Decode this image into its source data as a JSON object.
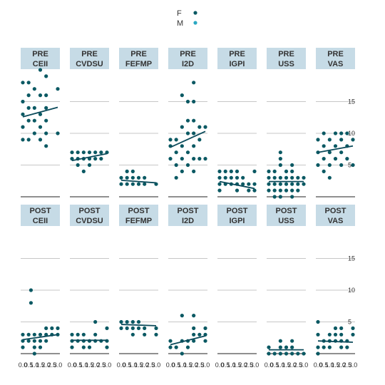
{
  "legend": {
    "entries": [
      {
        "label": "F",
        "color": "#0b5963"
      },
      {
        "label": "M",
        "color": "#2ba8c2"
      }
    ]
  },
  "chart_data": {
    "type": "scatter",
    "facet_rows": [
      "PRE",
      "POST"
    ],
    "facet_cols": [
      "CEII",
      "CVDSU",
      "FEFMP",
      "I2D",
      "IGPI",
      "USS",
      "VAS"
    ],
    "y_ticks": [
      5,
      10,
      15
    ],
    "y_ticks_pre": [
      5,
      10,
      15
    ],
    "y_ticks_post": [
      5,
      10,
      15
    ],
    "x_ticks": [
      "0.0",
      "0.5",
      "1.0",
      "1.5",
      "2.0",
      "2.5",
      "3.0"
    ],
    "xlim": [
      0,
      3
    ],
    "ylim_pre": [
      0,
      20
    ],
    "ylim_post": [
      0,
      20
    ],
    "grid": true,
    "point_color": "#0b5963",
    "line_color": "#0b4a5a",
    "strip_color": "#c6dbe6",
    "panels": [
      {
        "row": "PRE",
        "col": "CEII",
        "label_top": "PRE",
        "label_bottom": "CEII",
        "points": [
          [
            0,
            9
          ],
          [
            0,
            11
          ],
          [
            0,
            13
          ],
          [
            0,
            15
          ],
          [
            0,
            18
          ],
          [
            0.5,
            9
          ],
          [
            0.5,
            12
          ],
          [
            0.5,
            14
          ],
          [
            0.5,
            16
          ],
          [
            0.5,
            18
          ],
          [
            1,
            10
          ],
          [
            1,
            12
          ],
          [
            1,
            14
          ],
          [
            1,
            17
          ],
          [
            1.5,
            9
          ],
          [
            1.5,
            11
          ],
          [
            1.5,
            13
          ],
          [
            1.5,
            16
          ],
          [
            1.5,
            20
          ],
          [
            2,
            8
          ],
          [
            2,
            10
          ],
          [
            2,
            12
          ],
          [
            2,
            14
          ],
          [
            2,
            16
          ],
          [
            2,
            19
          ],
          [
            3,
            10
          ],
          [
            3,
            17
          ]
        ],
        "fit": [
          [
            0,
            12.6
          ],
          [
            3,
            14.1
          ]
        ]
      },
      {
        "row": "PRE",
        "col": "CVDSU",
        "label_top": "PRE",
        "label_bottom": "CVDSU",
        "points": [
          [
            0,
            6
          ],
          [
            0,
            7
          ],
          [
            0.5,
            5
          ],
          [
            0.5,
            6
          ],
          [
            0.5,
            7
          ],
          [
            1,
            4
          ],
          [
            1,
            6
          ],
          [
            1,
            7
          ],
          [
            1.5,
            5
          ],
          [
            1.5,
            6
          ],
          [
            1.5,
            7
          ],
          [
            2,
            6
          ],
          [
            2,
            7
          ],
          [
            2.5,
            6
          ],
          [
            2.5,
            7
          ],
          [
            3,
            7
          ]
        ],
        "fit": [
          [
            0,
            5.7
          ],
          [
            3,
            6.8
          ]
        ]
      },
      {
        "row": "PRE",
        "col": "FEFMP",
        "label_top": "PRE",
        "label_bottom": "FEFMP",
        "points": [
          [
            0,
            2
          ],
          [
            0,
            3
          ],
          [
            0.5,
            2
          ],
          [
            0.5,
            3
          ],
          [
            0.5,
            4
          ],
          [
            1,
            2
          ],
          [
            1,
            3
          ],
          [
            1,
            4
          ],
          [
            1.5,
            2
          ],
          [
            1.5,
            3
          ],
          [
            2,
            2
          ],
          [
            2,
            3
          ],
          [
            3,
            2
          ]
        ],
        "fit": [
          [
            0,
            2.6
          ],
          [
            3,
            2.2
          ]
        ]
      },
      {
        "row": "PRE",
        "col": "I2D",
        "label_top": "PRE",
        "label_bottom": "I2D",
        "points": [
          [
            0,
            6
          ],
          [
            0,
            8
          ],
          [
            0,
            9
          ],
          [
            0.5,
            3
          ],
          [
            0.5,
            5
          ],
          [
            0.5,
            7
          ],
          [
            0.5,
            9
          ],
          [
            1,
            4
          ],
          [
            1,
            6
          ],
          [
            1,
            8
          ],
          [
            1,
            11
          ],
          [
            1,
            16
          ],
          [
            1.5,
            5
          ],
          [
            1.5,
            7
          ],
          [
            1.5,
            10
          ],
          [
            1.5,
            12
          ],
          [
            1.5,
            15
          ],
          [
            2,
            4
          ],
          [
            2,
            6
          ],
          [
            2,
            8
          ],
          [
            2,
            10
          ],
          [
            2,
            12
          ],
          [
            2,
            15
          ],
          [
            2,
            18
          ],
          [
            2.5,
            6
          ],
          [
            2.5,
            9
          ],
          [
            2.5,
            11
          ],
          [
            3,
            6
          ],
          [
            3,
            11
          ]
        ],
        "fit": [
          [
            0,
            7.8
          ],
          [
            3,
            10.3
          ]
        ]
      },
      {
        "row": "PRE",
        "col": "IGPI",
        "label_top": "PRE",
        "label_bottom": "IGPI",
        "points": [
          [
            0,
            1
          ],
          [
            0,
            2
          ],
          [
            0,
            3
          ],
          [
            0,
            4
          ],
          [
            0.5,
            2
          ],
          [
            0.5,
            3
          ],
          [
            0.5,
            4
          ],
          [
            1,
            2
          ],
          [
            1,
            3
          ],
          [
            1,
            4
          ],
          [
            1.5,
            1
          ],
          [
            1.5,
            2
          ],
          [
            1.5,
            3
          ],
          [
            1.5,
            4
          ],
          [
            2,
            2
          ],
          [
            2,
            3
          ],
          [
            2.5,
            1
          ],
          [
            2.5,
            2
          ],
          [
            3,
            1
          ],
          [
            3,
            2
          ],
          [
            3,
            4
          ]
        ],
        "fit": [
          [
            0,
            2.4
          ],
          [
            3,
            1.3
          ]
        ]
      },
      {
        "row": "PRE",
        "col": "USS",
        "label_top": "PRE",
        "label_bottom": "USS",
        "points": [
          [
            0,
            1
          ],
          [
            0,
            2
          ],
          [
            0,
            3
          ],
          [
            0,
            4
          ],
          [
            0.5,
            0
          ],
          [
            0.5,
            1
          ],
          [
            0.5,
            2
          ],
          [
            0.5,
            3
          ],
          [
            0.5,
            4
          ],
          [
            1,
            0
          ],
          [
            1,
            1
          ],
          [
            1,
            2
          ],
          [
            1,
            3
          ],
          [
            1,
            5
          ],
          [
            1,
            6
          ],
          [
            1,
            7
          ],
          [
            1.5,
            1
          ],
          [
            1.5,
            2
          ],
          [
            1.5,
            3
          ],
          [
            1.5,
            4
          ],
          [
            2,
            0
          ],
          [
            2,
            1
          ],
          [
            2,
            2
          ],
          [
            2,
            3
          ],
          [
            2,
            4
          ],
          [
            2,
            5
          ],
          [
            2.5,
            1
          ],
          [
            2.5,
            2
          ],
          [
            2.5,
            3
          ],
          [
            3,
            2
          ],
          [
            3,
            3
          ]
        ],
        "fit": [
          [
            0,
            2.4
          ],
          [
            3,
            2.4
          ]
        ]
      },
      {
        "row": "PRE",
        "col": "VAS",
        "label_top": "PRE",
        "label_bottom": "VAS",
        "points": [
          [
            0,
            5
          ],
          [
            0,
            7
          ],
          [
            0,
            9
          ],
          [
            0.5,
            4
          ],
          [
            0.5,
            6
          ],
          [
            0.5,
            8
          ],
          [
            0.5,
            10
          ],
          [
            1,
            3
          ],
          [
            1,
            5
          ],
          [
            1,
            7
          ],
          [
            1,
            9
          ],
          [
            1.5,
            6
          ],
          [
            1.5,
            8
          ],
          [
            1.5,
            10
          ],
          [
            2,
            5
          ],
          [
            2,
            7
          ],
          [
            2,
            9
          ],
          [
            2,
            10
          ],
          [
            2.5,
            6
          ],
          [
            2.5,
            8
          ],
          [
            2.5,
            10
          ],
          [
            3,
            5
          ],
          [
            3,
            9
          ]
        ],
        "fit": [
          [
            0,
            7.0
          ],
          [
            3,
            8.0
          ]
        ]
      },
      {
        "row": "POST",
        "col": "CEII",
        "label_top": "POST",
        "label_bottom": "CEII",
        "points": [
          [
            0,
            1
          ],
          [
            0,
            2
          ],
          [
            0,
            3
          ],
          [
            0.5,
            2
          ],
          [
            0.5,
            3
          ],
          [
            0.7,
            8
          ],
          [
            0.7,
            10
          ],
          [
            1,
            0
          ],
          [
            1,
            1
          ],
          [
            1,
            2
          ],
          [
            1,
            3
          ],
          [
            1.5,
            1
          ],
          [
            1.5,
            2
          ],
          [
            1.5,
            3
          ],
          [
            2,
            2
          ],
          [
            2,
            3
          ],
          [
            2,
            4
          ],
          [
            2.5,
            3
          ],
          [
            2.5,
            4
          ],
          [
            3,
            3
          ],
          [
            3,
            4
          ]
        ],
        "fit": [
          [
            0,
            2.2
          ],
          [
            3,
            3.0
          ]
        ]
      },
      {
        "row": "POST",
        "col": "CVDSU",
        "label_top": "POST",
        "label_bottom": "CVDSU",
        "points": [
          [
            0,
            1
          ],
          [
            0,
            2
          ],
          [
            0,
            3
          ],
          [
            0.5,
            2
          ],
          [
            0.5,
            3
          ],
          [
            1,
            1
          ],
          [
            1,
            2
          ],
          [
            1,
            3
          ],
          [
            1.5,
            1
          ],
          [
            1.5,
            2
          ],
          [
            2,
            2
          ],
          [
            2,
            3
          ],
          [
            2,
            5
          ],
          [
            2.5,
            2
          ],
          [
            3,
            1
          ],
          [
            3,
            2
          ],
          [
            3,
            4
          ]
        ],
        "fit": [
          [
            0,
            2.1
          ],
          [
            3,
            2.1
          ]
        ]
      },
      {
        "row": "POST",
        "col": "FEFMP",
        "label_top": "POST",
        "label_bottom": "FEFMP",
        "points": [
          [
            0,
            4
          ],
          [
            0,
            5
          ],
          [
            0.5,
            4
          ],
          [
            0.5,
            5
          ],
          [
            1,
            3
          ],
          [
            1,
            4
          ],
          [
            1,
            5
          ],
          [
            1.5,
            4
          ],
          [
            1.5,
            5
          ],
          [
            2,
            3
          ],
          [
            2,
            4
          ],
          [
            3,
            3
          ],
          [
            3,
            4
          ]
        ],
        "fit": [
          [
            0,
            4.6
          ],
          [
            3,
            4.4
          ]
        ]
      },
      {
        "row": "POST",
        "col": "I2D",
        "label_top": "POST",
        "label_bottom": "I2D",
        "points": [
          [
            0,
            1
          ],
          [
            0,
            2
          ],
          [
            0.5,
            1
          ],
          [
            1,
            0
          ],
          [
            1,
            2
          ],
          [
            1,
            6
          ],
          [
            1.5,
            1
          ],
          [
            1.5,
            2
          ],
          [
            2,
            2
          ],
          [
            2,
            3
          ],
          [
            2,
            4
          ],
          [
            2,
            6
          ],
          [
            2.5,
            3
          ],
          [
            3,
            2
          ],
          [
            3,
            3
          ],
          [
            3,
            4
          ]
        ],
        "fit": [
          [
            0,
            1.4
          ],
          [
            3,
            2.8
          ]
        ]
      },
      {
        "row": "POST",
        "col": "IGPI",
        "label_top": "POST",
        "label_bottom": "IGPI",
        "points": [],
        "fit": null
      },
      {
        "row": "POST",
        "col": "USS",
        "label_top": "POST",
        "label_bottom": "USS",
        "points": [
          [
            0,
            0
          ],
          [
            0,
            1
          ],
          [
            0.5,
            0
          ],
          [
            1,
            0
          ],
          [
            1,
            1
          ],
          [
            1,
            2
          ],
          [
            1.5,
            0
          ],
          [
            1.5,
            1
          ],
          [
            2,
            0
          ],
          [
            2,
            1
          ],
          [
            2,
            2
          ],
          [
            2.5,
            0
          ],
          [
            3,
            0
          ]
        ],
        "fit": [
          [
            0,
            0.6
          ],
          [
            3,
            0.6
          ]
        ]
      },
      {
        "row": "POST",
        "col": "VAS",
        "label_top": "POST",
        "label_bottom": "VAS",
        "points": [
          [
            0,
            0
          ],
          [
            0,
            1
          ],
          [
            0,
            3
          ],
          [
            0,
            5
          ],
          [
            0.5,
            1
          ],
          [
            0.5,
            2
          ],
          [
            1,
            1
          ],
          [
            1,
            2
          ],
          [
            1,
            3
          ],
          [
            1.5,
            2
          ],
          [
            1.5,
            3
          ],
          [
            1.5,
            4
          ],
          [
            2,
            1
          ],
          [
            2,
            2
          ],
          [
            2,
            3
          ],
          [
            2,
            4
          ],
          [
            2.5,
            1
          ],
          [
            2.5,
            2
          ],
          [
            3,
            3
          ],
          [
            3,
            4
          ]
        ],
        "fit": [
          [
            0,
            2.0
          ],
          [
            3,
            1.8
          ]
        ]
      }
    ]
  }
}
